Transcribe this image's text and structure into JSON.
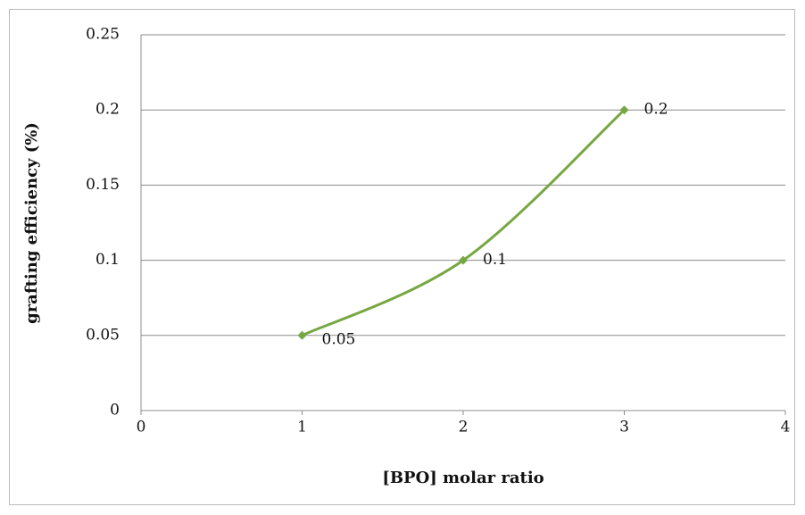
{
  "chart_data": {
    "type": "line",
    "x": [
      1,
      2,
      3
    ],
    "series": [
      {
        "name": "grafting efficiency",
        "color": "#77a742",
        "values": [
          0.05,
          0.1,
          0.2
        ]
      }
    ],
    "xlabel": "[BPO] molar ratio",
    "ylabel": "grafting efficiency (%)",
    "xlim": [
      0,
      4
    ],
    "xticks": [
      0,
      1,
      2,
      3,
      4
    ],
    "ylim": [
      0,
      0.25
    ],
    "yticks": [
      0,
      0.05,
      0.1,
      0.15,
      0.2,
      0.25
    ],
    "grid": true,
    "smooth": true,
    "data_labels": true
  }
}
